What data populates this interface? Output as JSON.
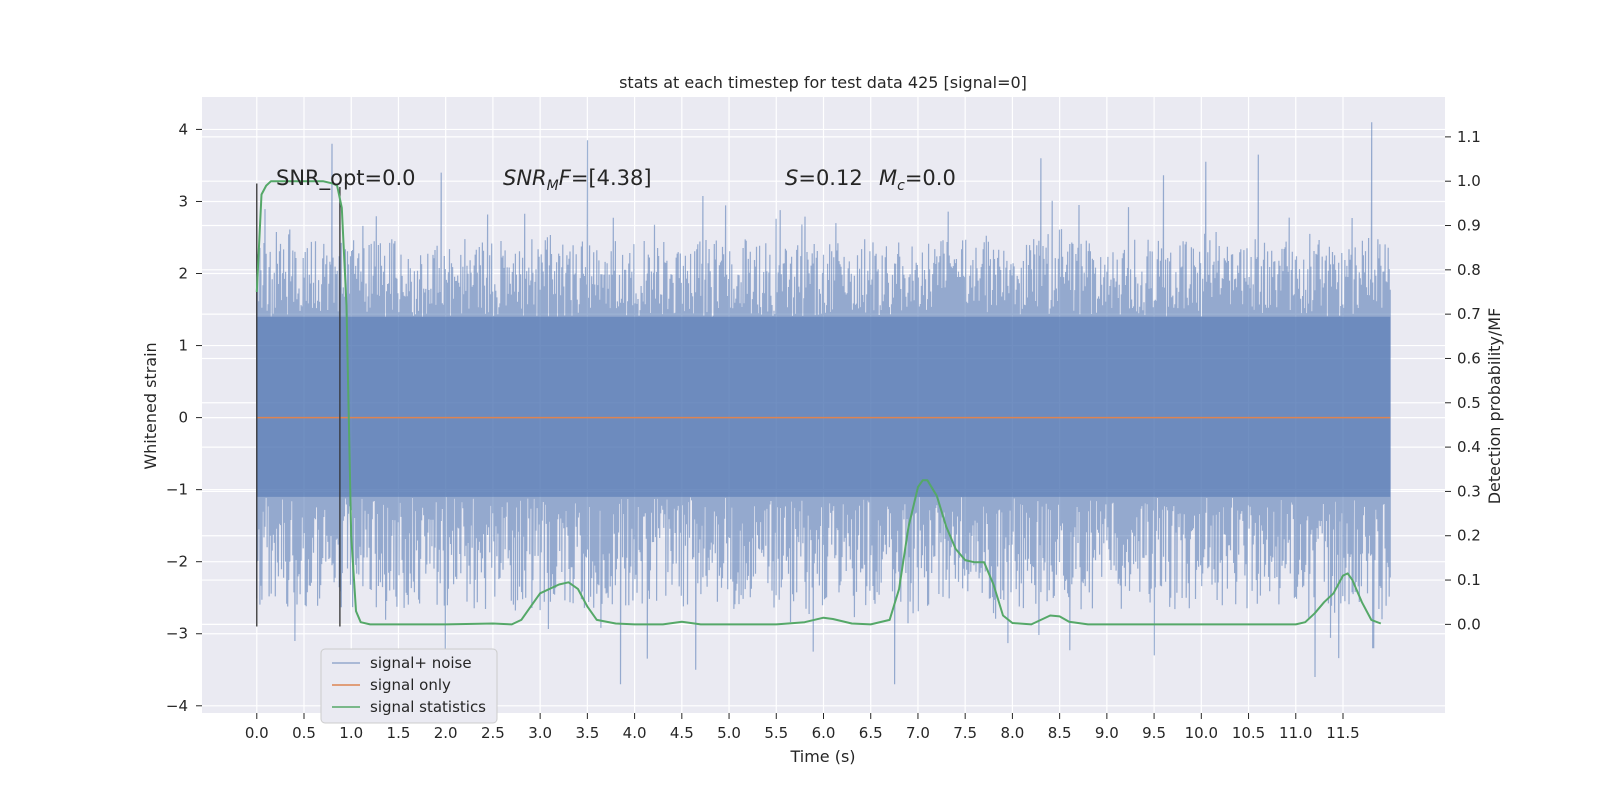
{
  "chart_data": {
    "type": "line",
    "title": "stats at each timestep for test data 425 [signal=0]",
    "xlabel": "Time (s)",
    "ylabel_left": "Whitened strain",
    "ylabel_right": "Detection probability/MF",
    "xlim": [
      -0.58,
      12.58
    ],
    "ylim_left": [
      -4.1,
      4.45
    ],
    "ylim_right": [
      -0.2,
      1.19
    ],
    "grid": true,
    "x_ticks": [
      0.0,
      0.5,
      1.0,
      1.5,
      2.0,
      2.5,
      3.0,
      3.5,
      4.0,
      4.5,
      5.0,
      5.5,
      6.0,
      6.5,
      7.0,
      7.5,
      8.0,
      8.5,
      9.0,
      9.5,
      10.0,
      10.5,
      11.0,
      11.5
    ],
    "x_tick_labels": [
      "0.0",
      "0.5",
      "1.0",
      "1.5",
      "2.0",
      "2.5",
      "3.0",
      "3.5",
      "4.0",
      "4.5",
      "5.0",
      "5.5",
      "6.0",
      "6.5",
      "7.0",
      "7.5",
      "8.0",
      "8.5",
      "9.0",
      "9.5",
      "10.0",
      "10.5",
      "11.0",
      "11.5"
    ],
    "y_left_ticks": [
      4,
      3,
      2,
      1,
      0,
      -1,
      -2,
      -3,
      -4
    ],
    "y_left_tick_labels": [
      "4",
      "3",
      "2",
      "1",
      "0",
      "−1",
      "−2",
      "−3",
      "−4"
    ],
    "y_right_ticks": [
      1.1,
      1.0,
      0.9,
      0.8,
      0.7,
      0.6,
      0.5,
      0.4,
      0.3,
      0.2,
      0.1,
      0.0
    ],
    "y_right_tick_labels": [
      "1.1",
      "1.0",
      "0.9",
      "0.8",
      "0.7",
      "0.6",
      "0.5",
      "0.4",
      "0.3",
      "0.2",
      "0.1",
      "0.0"
    ],
    "legend_position": "lower-left",
    "legend": [
      "signal+ noise",
      "signal only",
      "signal statistics"
    ],
    "colors": {
      "noise": "#4c72b0",
      "signal": "#dd8452",
      "stats": "#55a868",
      "vline": "#333333",
      "bg": "#eaeaf2",
      "grid": "#ffffff"
    },
    "noise_series": {
      "name": "signal+ noise",
      "x_range": [
        0.0,
        12.0
      ],
      "core_band": [
        -1.1,
        1.4
      ],
      "typical_peaks": [
        2.3,
        -2.4
      ],
      "extremes": [
        {
          "x": 0.8,
          "y": 3.8
        },
        {
          "x": 1.95,
          "y": 3.4
        },
        {
          "x": 2.0,
          "y": -3.25
        },
        {
          "x": 3.5,
          "y": 3.85
        },
        {
          "x": 3.85,
          "y": -3.7
        },
        {
          "x": 4.65,
          "y": -3.5
        },
        {
          "x": 6.75,
          "y": -3.7
        },
        {
          "x": 8.3,
          "y": 3.6
        },
        {
          "x": 9.5,
          "y": -3.3
        },
        {
          "x": 10.05,
          "y": 3.55
        },
        {
          "x": 10.6,
          "y": 3.65
        },
        {
          "x": 11.2,
          "y": -3.6
        },
        {
          "x": 11.8,
          "y": 4.1
        },
        {
          "x": 11.82,
          "y": -3.2
        },
        {
          "x": 0.4,
          "y": -3.1
        }
      ]
    },
    "signal_series": {
      "name": "signal only",
      "x": [
        0.0,
        12.0
      ],
      "y": [
        0.0,
        0.0
      ]
    },
    "stats_series": {
      "name": "signal statistics",
      "x": [
        0.0,
        0.05,
        0.1,
        0.15,
        0.2,
        0.3,
        0.5,
        0.7,
        0.8,
        0.85,
        0.9,
        0.95,
        1.0,
        1.05,
        1.1,
        1.2,
        1.5,
        2.0,
        2.5,
        2.7,
        2.8,
        2.9,
        3.0,
        3.2,
        3.3,
        3.4,
        3.5,
        3.6,
        3.8,
        4.0,
        4.3,
        4.5,
        4.7,
        5.0,
        5.5,
        5.8,
        6.0,
        6.1,
        6.3,
        6.5,
        6.7,
        6.8,
        6.9,
        7.0,
        7.05,
        7.1,
        7.2,
        7.3,
        7.4,
        7.5,
        7.6,
        7.7,
        7.8,
        7.9,
        8.0,
        8.2,
        8.4,
        8.5,
        8.6,
        8.8,
        9.0,
        9.5,
        10.0,
        10.5,
        11.0,
        11.1,
        11.2,
        11.3,
        11.4,
        11.5,
        11.55,
        11.6,
        11.7,
        11.8,
        11.9
      ],
      "y": [
        0.75,
        0.97,
        0.99,
        1.0,
        1.0,
        1.0,
        1.0,
        1.0,
        0.995,
        0.99,
        0.94,
        0.72,
        0.2,
        0.03,
        0.005,
        0.0,
        0.0,
        0.0,
        0.002,
        0.0,
        0.01,
        0.04,
        0.07,
        0.09,
        0.095,
        0.08,
        0.04,
        0.01,
        0.002,
        0.0,
        0.0,
        0.006,
        0.0,
        0.0,
        0.0,
        0.005,
        0.015,
        0.012,
        0.002,
        0.0,
        0.01,
        0.08,
        0.22,
        0.31,
        0.325,
        0.325,
        0.29,
        0.22,
        0.17,
        0.145,
        0.14,
        0.14,
        0.09,
        0.02,
        0.003,
        0.0,
        0.02,
        0.018,
        0.006,
        0.0,
        0.0,
        0.0,
        0.0,
        0.0,
        0.0,
        0.005,
        0.025,
        0.05,
        0.07,
        0.11,
        0.115,
        0.1,
        0.05,
        0.01,
        0.002
      ]
    },
    "vlines": [
      {
        "x": 0.0,
        "y_range": [
          -2.9,
          3.25
        ]
      },
      {
        "x": 0.88,
        "y_range": [
          -2.9,
          3.2
        ]
      }
    ],
    "annotations": {
      "snr_opt": "SNR_opt=0.0",
      "snr_mf_sym": "SNR",
      "snr_mf_sub": "M",
      "snr_mf_sym2": "F",
      "snr_mf_val": "=[4.38]",
      "s_sym": "S",
      "s_val": "=0.12",
      "mc_sym": "M",
      "mc_sub": "c",
      "mc_val": "=0.0"
    }
  }
}
